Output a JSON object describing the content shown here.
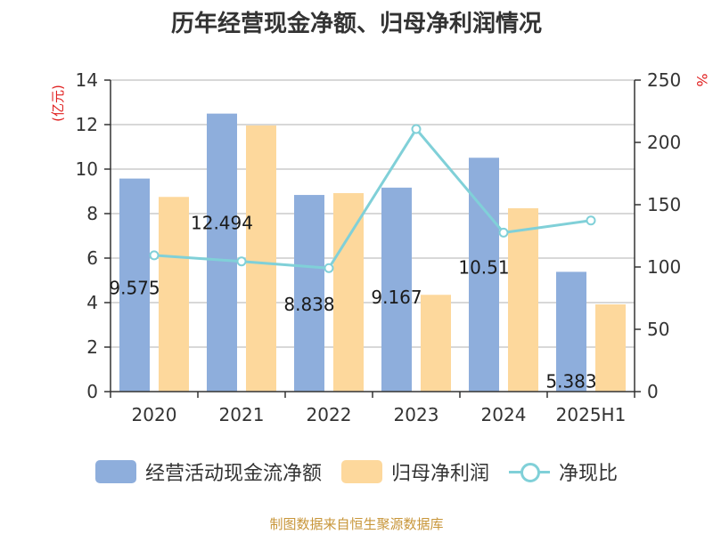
{
  "title": "历年经营现金净额、归母净利润情况",
  "source": "制图数据来自恒生聚源数据库",
  "chart_data": {
    "type": "bar",
    "categories": [
      "2020",
      "2021",
      "2022",
      "2023",
      "2024",
      "2025H1"
    ],
    "series": [
      {
        "name": "经营活动现金流净额",
        "type": "bar",
        "axis": "left",
        "color": "#8eaedc",
        "values": [
          9.575,
          12.494,
          8.838,
          9.167,
          10.51,
          5.383
        ]
      },
      {
        "name": "归母净利润",
        "type": "bar",
        "axis": "left",
        "color": "#fdd89c",
        "values": [
          8.75,
          11.96,
          8.92,
          4.35,
          8.24,
          3.92
        ]
      },
      {
        "name": "净现比",
        "type": "line",
        "axis": "right",
        "color": "#80d0d8",
        "values": [
          109.4,
          104.5,
          99.1,
          210.7,
          127.6,
          137.3
        ]
      }
    ],
    "data_labels": [
      "9.575",
      "12.494",
      "8.838",
      "9.167",
      "10.51",
      "5.383"
    ],
    "y_left": {
      "unit": "(亿元)",
      "ylim": [
        0,
        14
      ],
      "ticks": [
        "0",
        "2",
        "4",
        "6",
        "8",
        "10",
        "12",
        "14"
      ]
    },
    "y_right": {
      "unit": "%",
      "ylim": [
        0,
        250
      ],
      "ticks": [
        "0",
        "50",
        "100",
        "150",
        "200",
        "250"
      ]
    },
    "grid": true,
    "legend_position": "bottom"
  }
}
